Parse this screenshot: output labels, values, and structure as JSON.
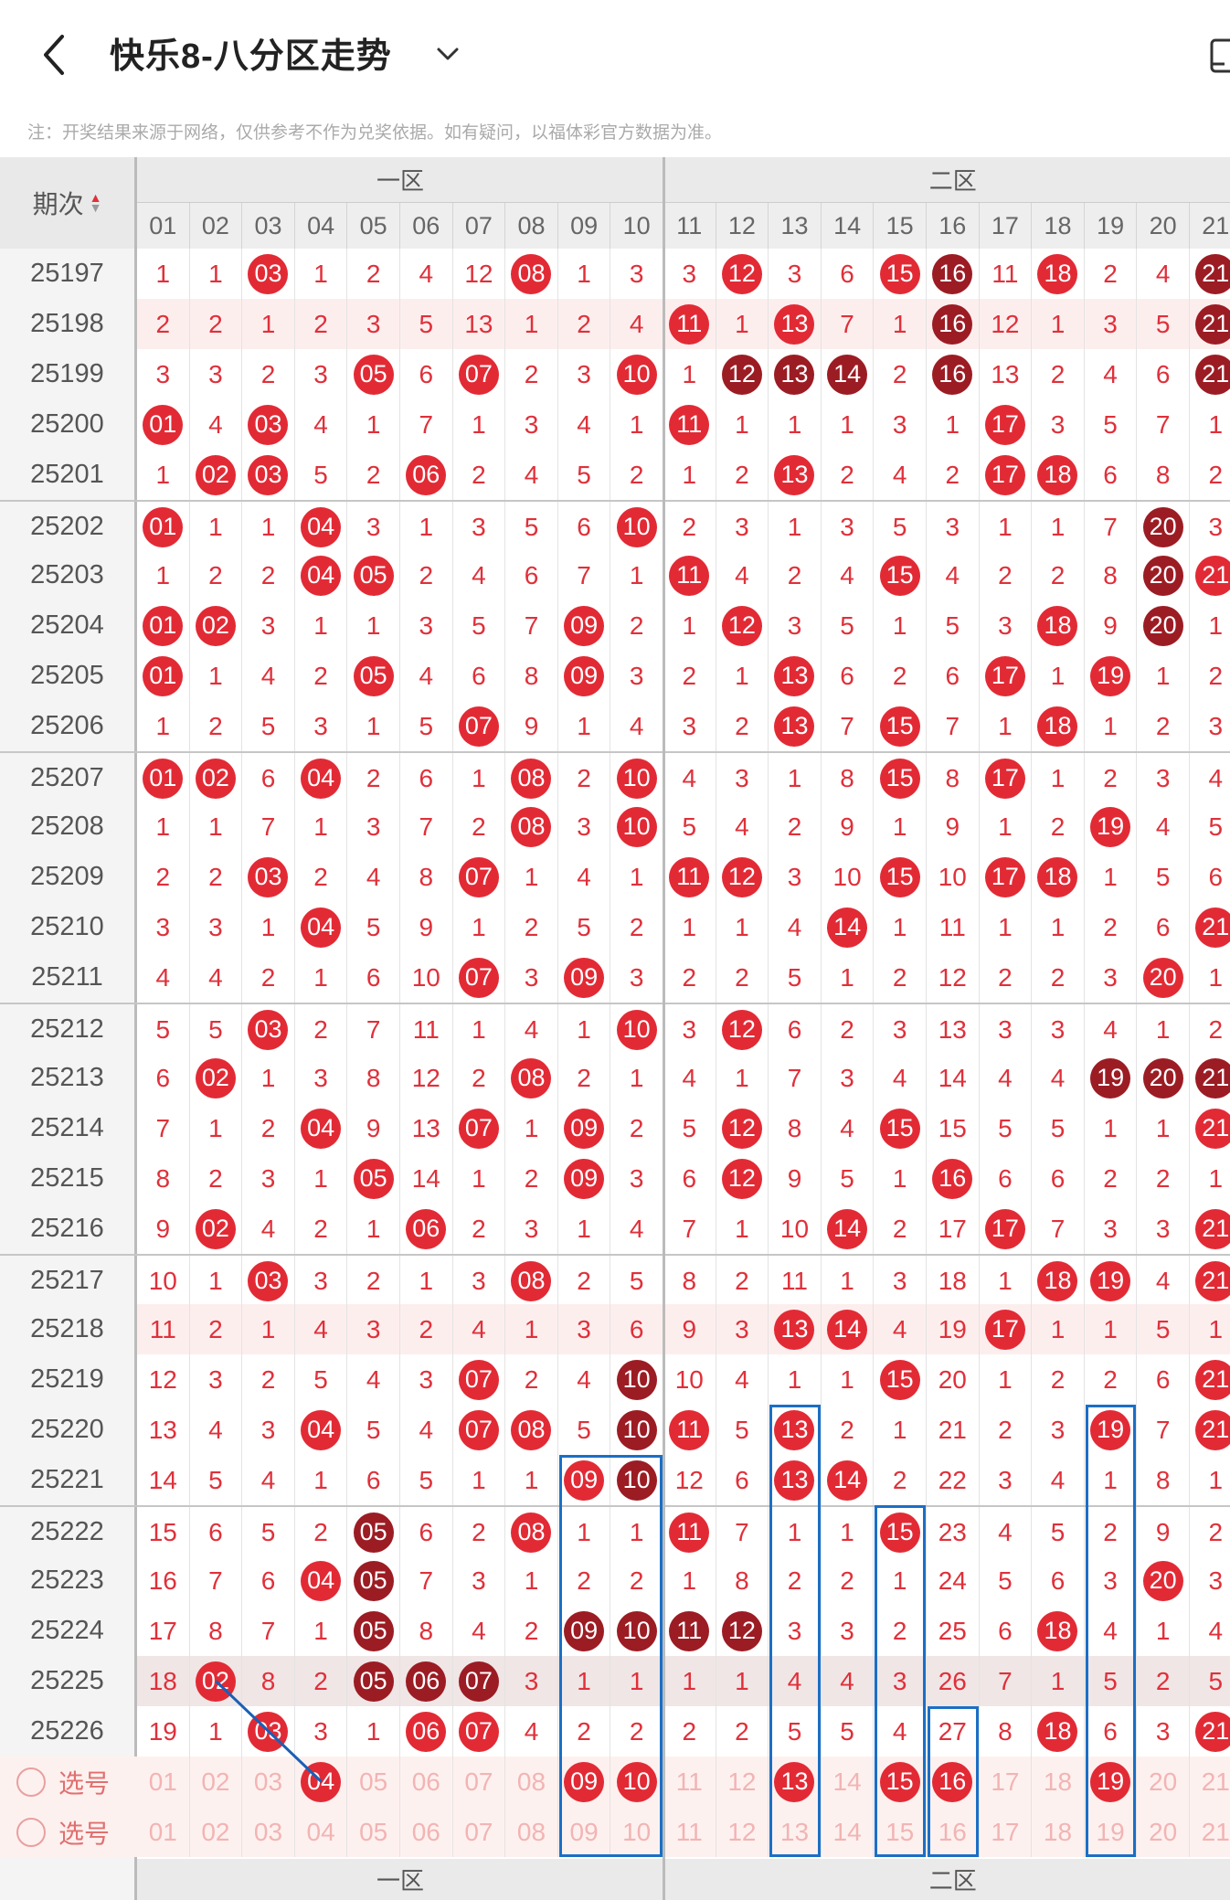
{
  "header": {
    "title": "快乐8-八分区走势"
  },
  "notice": "注：开奖结果来源于网络，仅供参考不作为兑奖依据。如有疑问，以福体彩官方数据为准。",
  "table": {
    "issue_header": "期次",
    "zones": [
      "一区",
      "二区"
    ],
    "columns": [
      "01",
      "02",
      "03",
      "04",
      "05",
      "06",
      "07",
      "08",
      "09",
      "10",
      "11",
      "12",
      "13",
      "14",
      "15",
      "16",
      "17",
      "18",
      "19",
      "20",
      "21"
    ],
    "rows": [
      {
        "issue": "25197",
        "cells": [
          "1",
          "1",
          "03",
          "1",
          "2",
          "4",
          "12",
          "08",
          "1",
          "3",
          "3",
          "12",
          "3",
          "6",
          "15",
          "16",
          "11",
          "18",
          "2",
          "4",
          "21"
        ],
        "dark": [
          "16",
          "21"
        ]
      },
      {
        "issue": "25198",
        "cells": [
          "2",
          "2",
          "1",
          "2",
          "3",
          "5",
          "13",
          "1",
          "2",
          "4",
          "11",
          "1",
          "13",
          "7",
          "1",
          "16",
          "12",
          "1",
          "3",
          "5",
          "21"
        ],
        "dark": [
          "16",
          "21"
        ],
        "style": "pink"
      },
      {
        "issue": "25199",
        "cells": [
          "3",
          "3",
          "2",
          "3",
          "05",
          "6",
          "07",
          "2",
          "3",
          "10",
          "1",
          "12",
          "13",
          "14",
          "2",
          "16",
          "13",
          "2",
          "4",
          "6",
          "21"
        ],
        "dark": [
          "12",
          "13",
          "14",
          "16",
          "21"
        ]
      },
      {
        "issue": "25200",
        "cells": [
          "01",
          "4",
          "03",
          "4",
          "1",
          "7",
          "1",
          "3",
          "4",
          "1",
          "11",
          "1",
          "1",
          "1",
          "3",
          "1",
          "17",
          "3",
          "5",
          "7",
          "1"
        ],
        "dark": []
      },
      {
        "issue": "25201",
        "cells": [
          "1",
          "02",
          "03",
          "5",
          "2",
          "06",
          "2",
          "4",
          "5",
          "2",
          "1",
          "2",
          "13",
          "2",
          "4",
          "2",
          "17",
          "18",
          "6",
          "8",
          "2"
        ],
        "dark": []
      },
      {
        "issue": "25202",
        "cells": [
          "01",
          "1",
          "1",
          "04",
          "3",
          "1",
          "3",
          "5",
          "6",
          "10",
          "2",
          "3",
          "1",
          "3",
          "5",
          "3",
          "1",
          "1",
          "7",
          "20",
          "3"
        ],
        "dark": [
          "20"
        ],
        "sep": true
      },
      {
        "issue": "25203",
        "cells": [
          "1",
          "2",
          "2",
          "04",
          "05",
          "2",
          "4",
          "6",
          "7",
          "1",
          "11",
          "4",
          "2",
          "4",
          "15",
          "4",
          "2",
          "2",
          "8",
          "20",
          "21"
        ],
        "dark": [
          "20"
        ]
      },
      {
        "issue": "25204",
        "cells": [
          "01",
          "02",
          "3",
          "1",
          "1",
          "3",
          "5",
          "7",
          "09",
          "2",
          "1",
          "12",
          "3",
          "5",
          "1",
          "5",
          "3",
          "18",
          "9",
          "20",
          "1"
        ],
        "dark": [
          "20"
        ]
      },
      {
        "issue": "25205",
        "cells": [
          "01",
          "1",
          "4",
          "2",
          "05",
          "4",
          "6",
          "8",
          "09",
          "3",
          "2",
          "1",
          "13",
          "6",
          "2",
          "6",
          "17",
          "1",
          "19",
          "1",
          "2"
        ],
        "dark": []
      },
      {
        "issue": "25206",
        "cells": [
          "1",
          "2",
          "5",
          "3",
          "1",
          "5",
          "07",
          "9",
          "1",
          "4",
          "3",
          "2",
          "13",
          "7",
          "15",
          "7",
          "1",
          "18",
          "1",
          "2",
          "3"
        ],
        "dark": []
      },
      {
        "issue": "25207",
        "cells": [
          "01",
          "02",
          "6",
          "04",
          "2",
          "6",
          "1",
          "08",
          "2",
          "10",
          "4",
          "3",
          "1",
          "8",
          "15",
          "8",
          "17",
          "1",
          "2",
          "3",
          "4"
        ],
        "dark": [],
        "sep": true
      },
      {
        "issue": "25208",
        "cells": [
          "1",
          "1",
          "7",
          "1",
          "3",
          "7",
          "2",
          "08",
          "3",
          "10",
          "5",
          "4",
          "2",
          "9",
          "1",
          "9",
          "1",
          "2",
          "19",
          "4",
          "5"
        ],
        "dark": []
      },
      {
        "issue": "25209",
        "cells": [
          "2",
          "2",
          "03",
          "2",
          "4",
          "8",
          "07",
          "1",
          "4",
          "1",
          "11",
          "12",
          "3",
          "10",
          "15",
          "10",
          "17",
          "18",
          "1",
          "5",
          "6"
        ],
        "dark": []
      },
      {
        "issue": "25210",
        "cells": [
          "3",
          "3",
          "1",
          "04",
          "5",
          "9",
          "1",
          "2",
          "5",
          "2",
          "1",
          "1",
          "4",
          "14",
          "1",
          "11",
          "1",
          "1",
          "2",
          "6",
          "21"
        ],
        "dark": []
      },
      {
        "issue": "25211",
        "cells": [
          "4",
          "4",
          "2",
          "1",
          "6",
          "10",
          "07",
          "3",
          "09",
          "3",
          "2",
          "2",
          "5",
          "1",
          "2",
          "12",
          "2",
          "2",
          "3",
          "20",
          "1"
        ],
        "dark": []
      },
      {
        "issue": "25212",
        "cells": [
          "5",
          "5",
          "03",
          "2",
          "7",
          "11",
          "1",
          "4",
          "1",
          "10",
          "3",
          "12",
          "6",
          "2",
          "3",
          "13",
          "3",
          "3",
          "4",
          "1",
          "2"
        ],
        "dark": [],
        "sep": true
      },
      {
        "issue": "25213",
        "cells": [
          "6",
          "02",
          "1",
          "3",
          "8",
          "12",
          "2",
          "08",
          "2",
          "1",
          "4",
          "1",
          "7",
          "3",
          "4",
          "14",
          "4",
          "4",
          "19",
          "20",
          "21"
        ],
        "dark": [
          "19",
          "20",
          "21"
        ]
      },
      {
        "issue": "25214",
        "cells": [
          "7",
          "1",
          "2",
          "04",
          "9",
          "13",
          "07",
          "1",
          "09",
          "2",
          "5",
          "12",
          "8",
          "4",
          "15",
          "15",
          "5",
          "5",
          "1",
          "1",
          "21"
        ],
        "dark": []
      },
      {
        "issue": "25215",
        "cells": [
          "8",
          "2",
          "3",
          "1",
          "05",
          "14",
          "1",
          "2",
          "09",
          "3",
          "6",
          "12",
          "9",
          "5",
          "1",
          "16",
          "6",
          "6",
          "2",
          "2",
          "1"
        ],
        "dark": []
      },
      {
        "issue": "25216",
        "cells": [
          "9",
          "02",
          "4",
          "2",
          "1",
          "06",
          "2",
          "3",
          "1",
          "4",
          "7",
          "1",
          "10",
          "14",
          "2",
          "17",
          "17",
          "7",
          "3",
          "3",
          "21"
        ],
        "dark": []
      },
      {
        "issue": "25217",
        "cells": [
          "10",
          "1",
          "03",
          "3",
          "2",
          "1",
          "3",
          "08",
          "2",
          "5",
          "8",
          "2",
          "11",
          "1",
          "3",
          "18",
          "1",
          "18",
          "19",
          "4",
          "21"
        ],
        "dark": [],
        "sep": true
      },
      {
        "issue": "25218",
        "cells": [
          "11",
          "2",
          "1",
          "4",
          "3",
          "2",
          "4",
          "1",
          "3",
          "6",
          "9",
          "3",
          "13",
          "14",
          "4",
          "19",
          "17",
          "1",
          "1",
          "5",
          "1"
        ],
        "dark": [],
        "style": "pink"
      },
      {
        "issue": "25219",
        "cells": [
          "12",
          "3",
          "2",
          "5",
          "4",
          "3",
          "07",
          "2",
          "4",
          "10",
          "10",
          "4",
          "1",
          "1",
          "15",
          "20",
          "1",
          "2",
          "2",
          "6",
          "21"
        ],
        "dark": [
          "10"
        ]
      },
      {
        "issue": "25220",
        "cells": [
          "13",
          "4",
          "3",
          "04",
          "5",
          "4",
          "07",
          "08",
          "5",
          "10",
          "11",
          "5",
          "13",
          "2",
          "1",
          "21",
          "2",
          "3",
          "19",
          "7",
          "21"
        ],
        "dark": [
          "10"
        ]
      },
      {
        "issue": "25221",
        "cells": [
          "14",
          "5",
          "4",
          "1",
          "6",
          "5",
          "1",
          "1",
          "09",
          "10",
          "12",
          "6",
          "13",
          "14",
          "2",
          "22",
          "3",
          "4",
          "1",
          "8",
          "1"
        ],
        "dark": [
          "10"
        ]
      },
      {
        "issue": "25222",
        "cells": [
          "15",
          "6",
          "5",
          "2",
          "05",
          "6",
          "2",
          "08",
          "1",
          "1",
          "11",
          "7",
          "1",
          "1",
          "15",
          "23",
          "4",
          "5",
          "2",
          "9",
          "2"
        ],
        "dark": [
          "05"
        ],
        "sep": true
      },
      {
        "issue": "25223",
        "cells": [
          "16",
          "7",
          "6",
          "04",
          "05",
          "7",
          "3",
          "1",
          "2",
          "2",
          "1",
          "8",
          "2",
          "2",
          "1",
          "24",
          "5",
          "6",
          "3",
          "20",
          "3"
        ],
        "dark": [
          "05"
        ]
      },
      {
        "issue": "25224",
        "cells": [
          "17",
          "8",
          "7",
          "1",
          "05",
          "8",
          "4",
          "2",
          "09",
          "10",
          "11",
          "12",
          "3",
          "3",
          "2",
          "25",
          "6",
          "18",
          "4",
          "1",
          "4"
        ],
        "dark": [
          "05",
          "09",
          "10",
          "11",
          "12"
        ]
      },
      {
        "issue": "25225",
        "cells": [
          "18",
          "02",
          "8",
          "2",
          "05",
          "06",
          "07",
          "3",
          "1",
          "1",
          "1",
          "1",
          "4",
          "4",
          "3",
          "26",
          "7",
          "1",
          "5",
          "2",
          "5"
        ],
        "dark": [
          "05",
          "06",
          "07"
        ],
        "style": "grey"
      },
      {
        "issue": "25226",
        "cells": [
          "19",
          "1",
          "03",
          "3",
          "1",
          "06",
          "07",
          "4",
          "2",
          "2",
          "2",
          "2",
          "5",
          "5",
          "4",
          "27",
          "8",
          "18",
          "6",
          "3",
          "21"
        ],
        "dark": []
      }
    ],
    "select_rows": [
      {
        "label": "选号",
        "cells": [
          "01",
          "02",
          "03",
          "04",
          "05",
          "06",
          "07",
          "08",
          "09",
          "10",
          "11",
          "12",
          "13",
          "14",
          "15",
          "16",
          "17",
          "18",
          "19",
          "20",
          "21"
        ],
        "picked": [
          "04",
          "09",
          "10",
          "13",
          "15",
          "16",
          "19"
        ]
      },
      {
        "label": "选号",
        "cells": [
          "01",
          "02",
          "03",
          "04",
          "05",
          "06",
          "07",
          "08",
          "09",
          "10",
          "11",
          "12",
          "13",
          "14",
          "15",
          "16",
          "17",
          "18",
          "19",
          "20",
          "21"
        ],
        "picked": []
      }
    ]
  },
  "colors": {
    "ball": "#e22a35",
    "ball_dark": "#9c1c24",
    "box": "#1b6fc6",
    "text_red": "#e0303a"
  }
}
